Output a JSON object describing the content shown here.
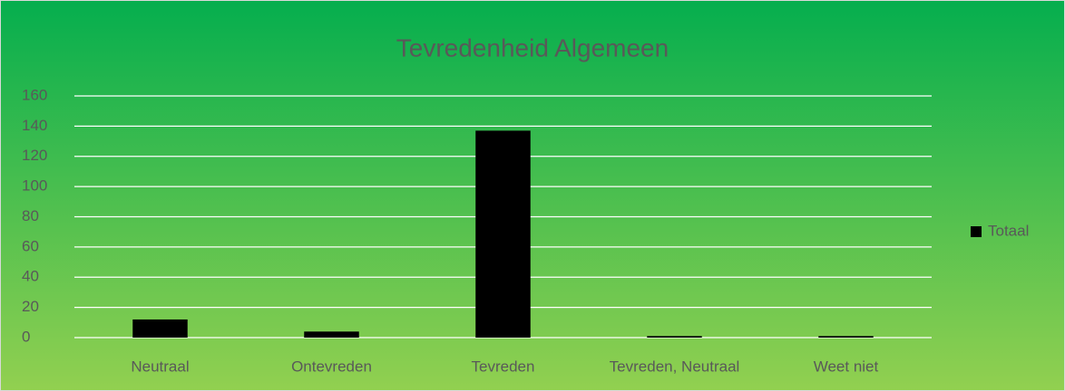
{
  "chart_data": {
    "type": "bar",
    "title": "Tevredenheid Algemeen",
    "categories": [
      "Neutraal",
      "Ontevreden",
      "Tevreden",
      "Tevreden, Neutraal",
      "Weet niet"
    ],
    "series": [
      {
        "name": "Totaal",
        "color": "#000000",
        "values": [
          12,
          4,
          137,
          1,
          1
        ]
      }
    ],
    "ylim": [
      0,
      160
    ],
    "yticks": [
      0,
      20,
      40,
      60,
      80,
      100,
      120,
      140,
      160
    ],
    "grid": true,
    "legend": "right"
  }
}
